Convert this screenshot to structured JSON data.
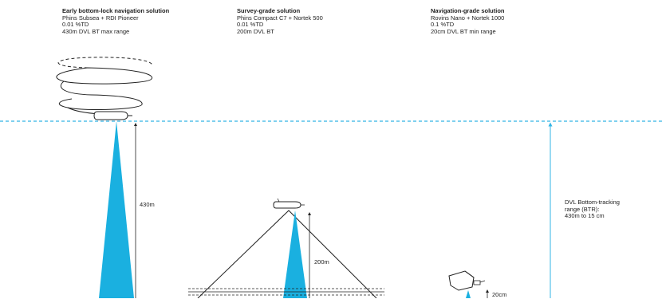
{
  "solutions": [
    {
      "title": "Early bottom-lock navigation solution",
      "line1": "Phins Subsea + RDI Pioneer",
      "line2": "0.01 %TD",
      "line3": "430m DVL BT max range"
    },
    {
      "title": "Survey-grade solution",
      "line1": "Phins Compact C7 + Nortek 500",
      "line2": "0.01 %TD",
      "line3": "200m DVL BT"
    },
    {
      "title": "Navigation-grade solution",
      "line1": "Rovins Nano + Nortek 1000",
      "line2": "0.1 %TD",
      "line3": "20cm DVL BT min range"
    }
  ],
  "measurements": {
    "range_430": "430m",
    "range_200": "200m",
    "range_20": "20cm"
  },
  "btr": {
    "line1": "DVL Bottom-tracking",
    "line2": "range (BTR):",
    "line3": "430m to 15 cm"
  },
  "colors": {
    "beam": "#1ab0e0",
    "dashed_line": "#33b5e5",
    "ink": "#222222"
  }
}
